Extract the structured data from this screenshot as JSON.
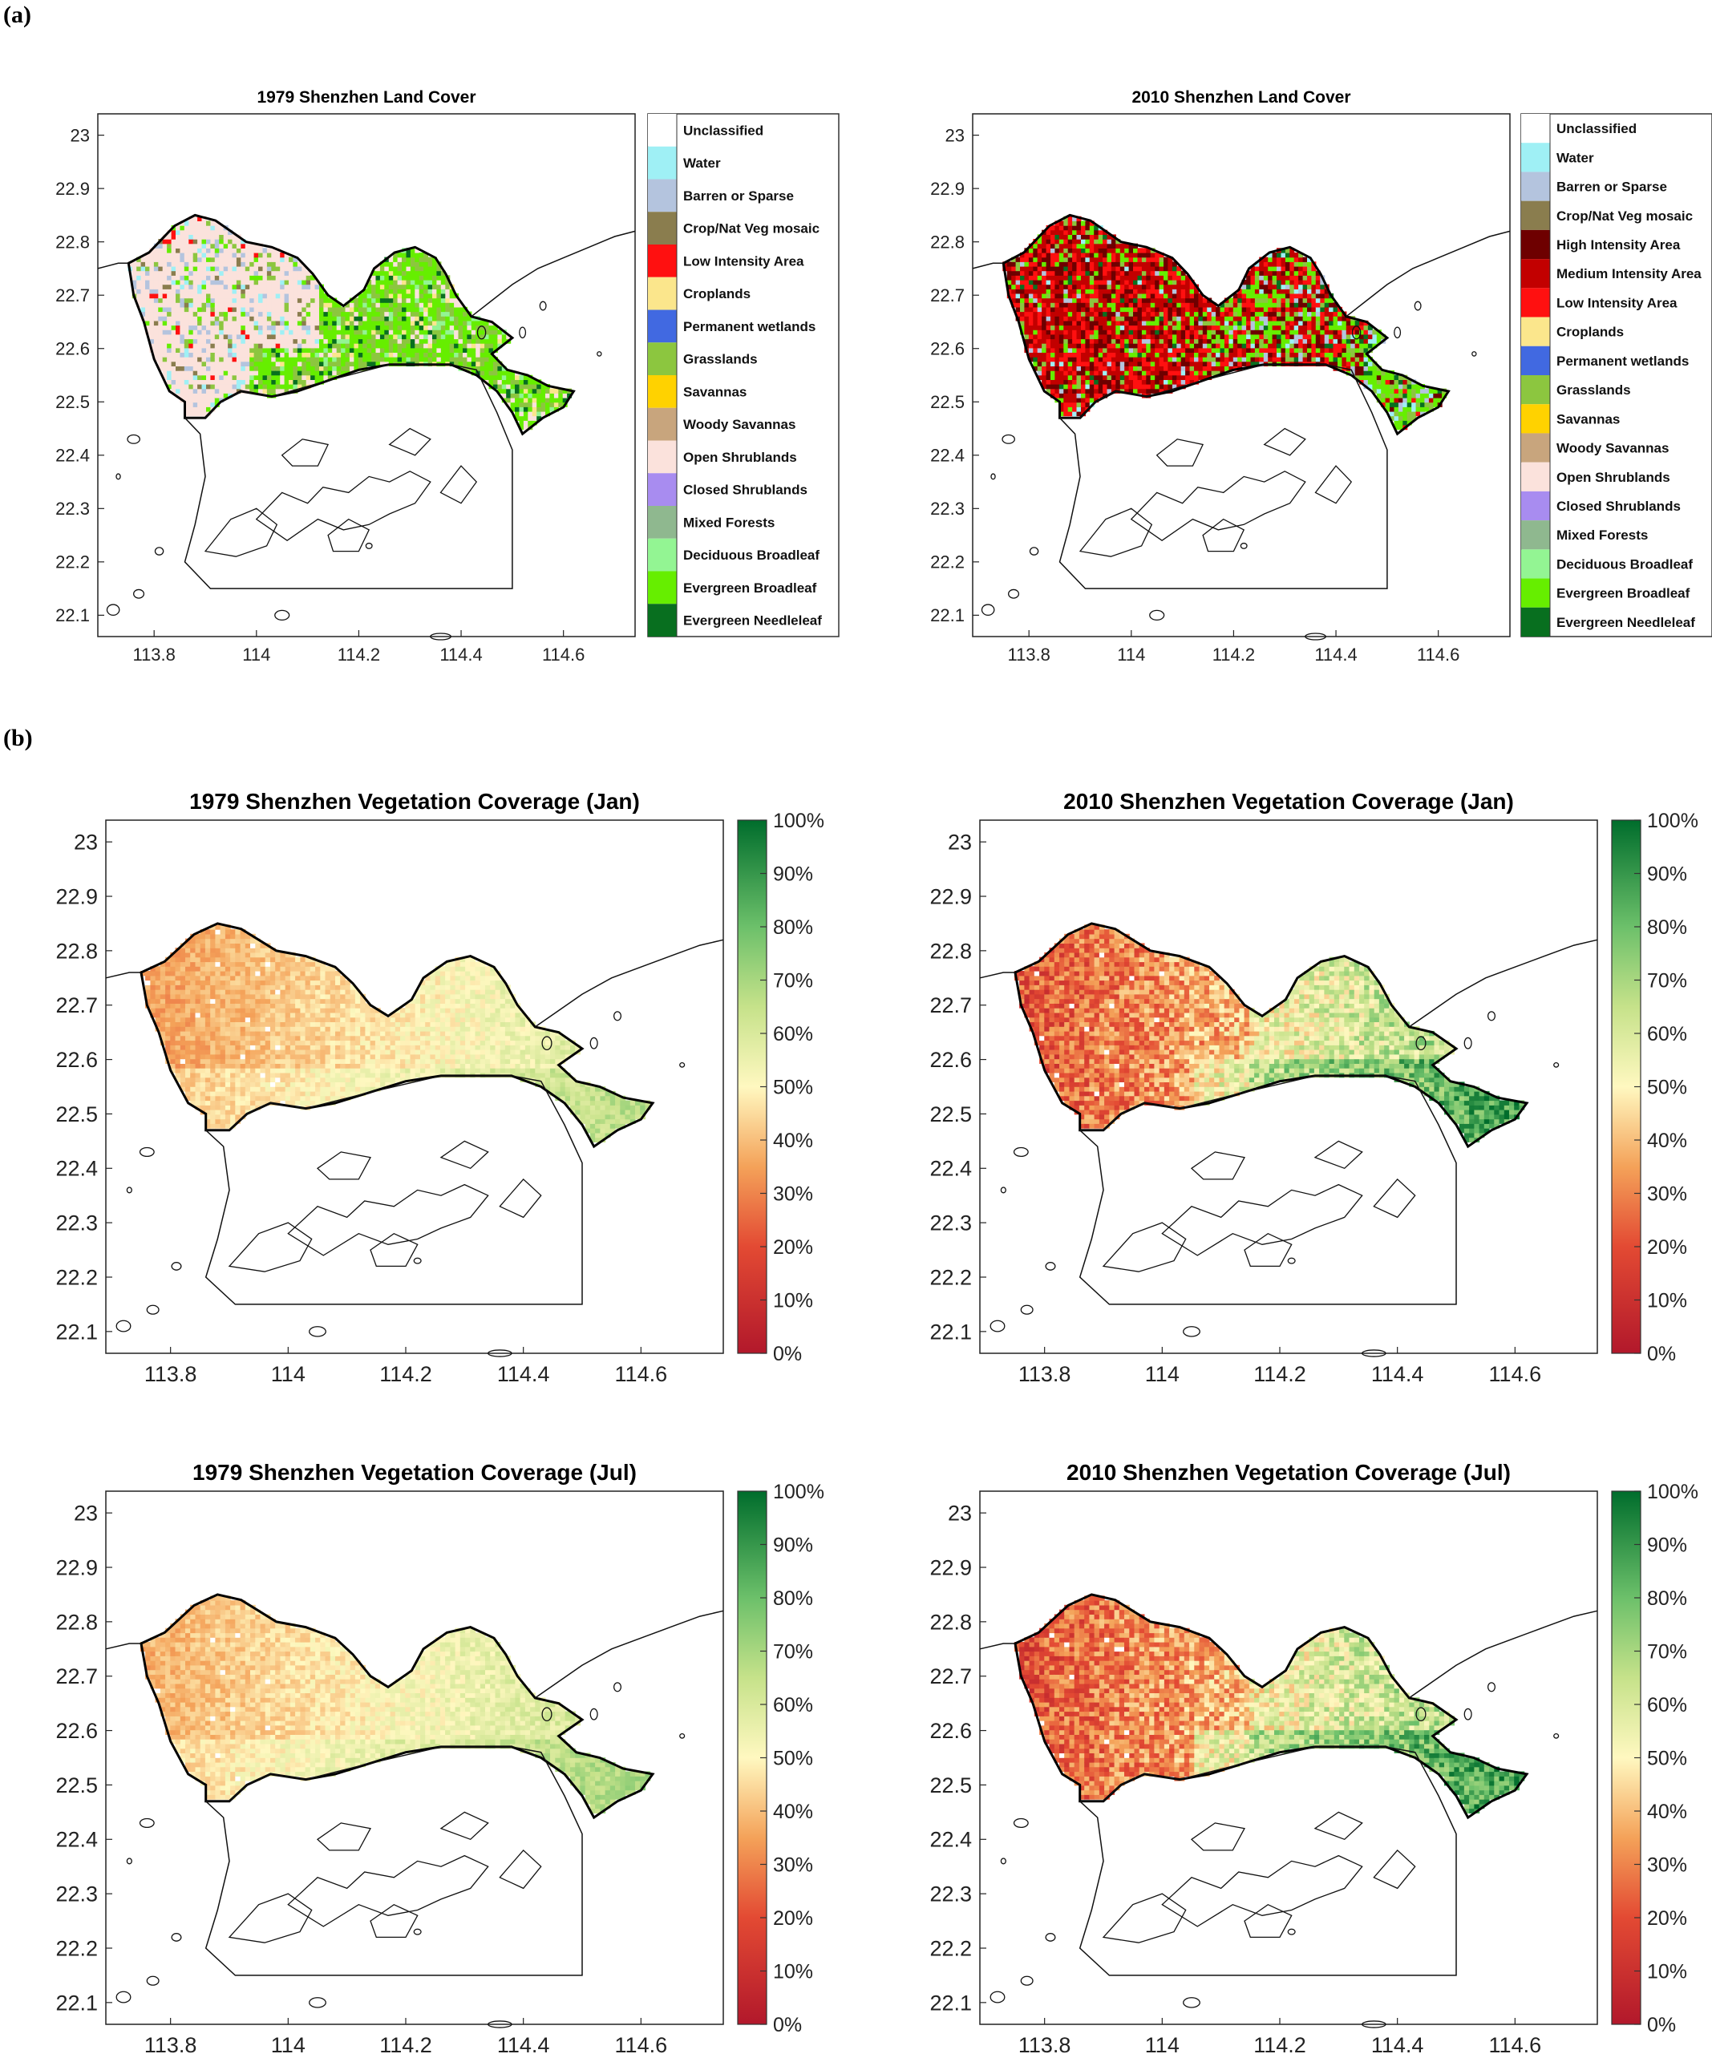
{
  "panel_labels": {
    "a": "(a)",
    "b": "(b)"
  },
  "axes": {
    "lon_ticks": [
      113.8,
      114,
      114.2,
      114.4,
      114.6
    ],
    "lon_tick_labels": [
      "113.8",
      "114",
      "114.2",
      "114.4",
      "114.6"
    ],
    "lat_ticks": [
      23,
      22.9,
      22.8,
      22.7,
      22.6,
      22.5,
      22.4,
      22.3,
      22.2,
      22.1
    ],
    "lat_tick_labels": [
      "23",
      "22.9",
      "22.8",
      "22.7",
      "22.6",
      "22.5",
      "22.4",
      "22.3",
      "22.2",
      "22.1"
    ],
    "lon_range": [
      113.69,
      114.74
    ],
    "lat_range": [
      22.06,
      23.04
    ]
  },
  "colorbar": {
    "ticks": [
      "100%",
      "90%",
      "80%",
      "70%",
      "60%",
      "50%",
      "40%",
      "30%",
      "20%",
      "10%",
      "0%"
    ],
    "low_color": "#b2182b",
    "mid_color": "#fff8c0",
    "high_color": "#006d2c"
  },
  "chart_data": [
    {
      "type": "heatmap",
      "title": "1979 Shenzhen Land Cover",
      "legend": [
        {
          "label": "Unclassified",
          "color": "#ffffff"
        },
        {
          "label": "Water",
          "color": "#9ff0f5"
        },
        {
          "label": "Barren or Sparse",
          "color": "#b4c4de"
        },
        {
          "label": "Crop/Nat Veg mosaic",
          "color": "#8a7d4e"
        },
        {
          "label": "Low Intensity Area",
          "color": "#ff1010"
        },
        {
          "label": "Croplands",
          "color": "#fbe68c"
        },
        {
          "label": "Permanent wetlands",
          "color": "#4169e1"
        },
        {
          "label": "Grasslands",
          "color": "#8cc63f"
        },
        {
          "label": "Savannas",
          "color": "#ffd200"
        },
        {
          "label": "Woody Savannas",
          "color": "#c8a57d"
        },
        {
          "label": "Open Shrublands",
          "color": "#fbe2dc"
        },
        {
          "label": "Closed Shrublands",
          "color": "#a88cf0"
        },
        {
          "label": "Mixed Forests",
          "color": "#8fb88f"
        },
        {
          "label": "Deciduous Broadleaf",
          "color": "#93f593"
        },
        {
          "label": "Evergreen Broadleaf",
          "color": "#66ee00"
        },
        {
          "label": "Evergreen Needleleaf",
          "color": "#086f1f"
        }
      ]
    },
    {
      "type": "heatmap",
      "title": "2010 Shenzhen Land Cover",
      "legend": [
        {
          "label": "Unclassified",
          "color": "#ffffff"
        },
        {
          "label": "Water",
          "color": "#9ff0f5"
        },
        {
          "label": "Barren or Sparse",
          "color": "#b4c4de"
        },
        {
          "label": "Crop/Nat Veg mosaic",
          "color": "#8a7d4e"
        },
        {
          "label": "High Intensity Area",
          "color": "#6e0000"
        },
        {
          "label": "Medium Intensity Area",
          "color": "#c20000"
        },
        {
          "label": "Low Intensity Area",
          "color": "#ff1010"
        },
        {
          "label": "Croplands",
          "color": "#fbe68c"
        },
        {
          "label": "Permanent wetlands",
          "color": "#4169e1"
        },
        {
          "label": "Grasslands",
          "color": "#8cc63f"
        },
        {
          "label": "Savannas",
          "color": "#ffd200"
        },
        {
          "label": "Woody Savannas",
          "color": "#c8a57d"
        },
        {
          "label": "Open Shrublands",
          "color": "#fbe2dc"
        },
        {
          "label": "Closed Shrublands",
          "color": "#a88cf0"
        },
        {
          "label": "Mixed Forests",
          "color": "#8fb88f"
        },
        {
          "label": "Deciduous Broadleaf",
          "color": "#93f593"
        },
        {
          "label": "Evergreen Broadleaf",
          "color": "#66ee00"
        },
        {
          "label": "Evergreen Needleleaf",
          "color": "#086f1f"
        }
      ]
    },
    {
      "type": "heatmap",
      "title": "1979 Shenzhen Vegetation Coverage (Jan)",
      "value_range": [
        0,
        100
      ],
      "unit": "%"
    },
    {
      "type": "heatmap",
      "title": "2010 Shenzhen Vegetation Coverage (Jan)",
      "value_range": [
        0,
        100
      ],
      "unit": "%"
    },
    {
      "type": "heatmap",
      "title": "1979 Shenzhen Vegetation Coverage (Jul)",
      "value_range": [
        0,
        100
      ],
      "unit": "%"
    },
    {
      "type": "heatmap",
      "title": "2010 Shenzhen Vegetation Coverage (Jul)",
      "value_range": [
        0,
        100
      ],
      "unit": "%"
    }
  ]
}
